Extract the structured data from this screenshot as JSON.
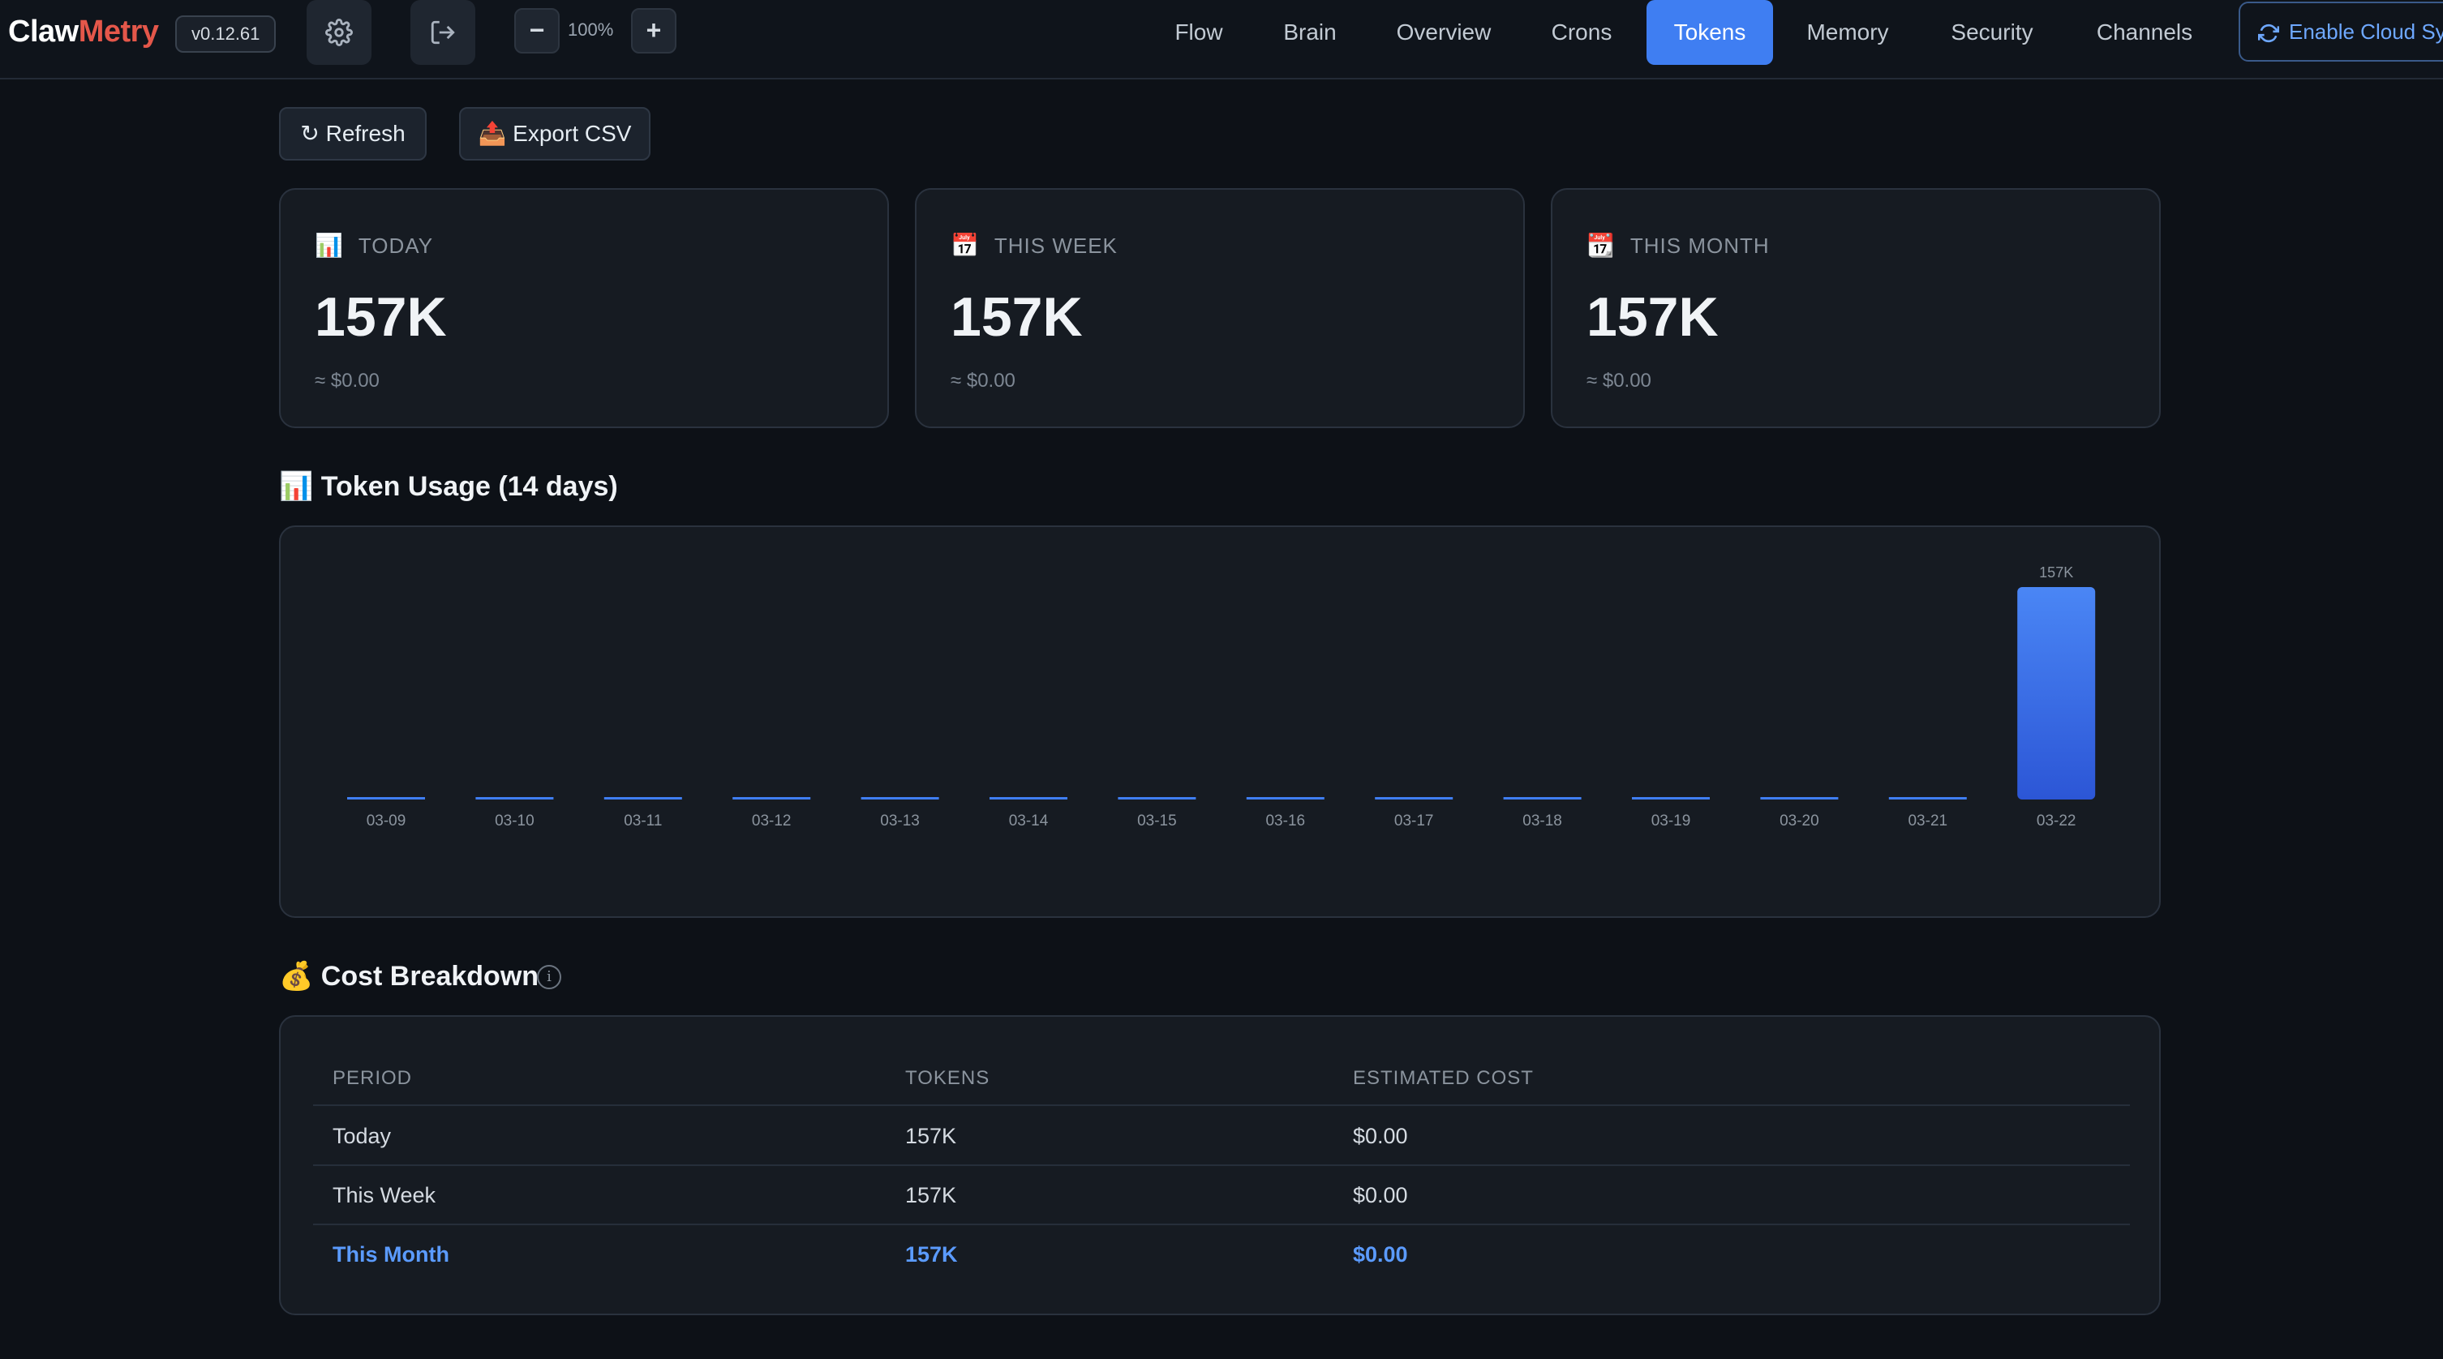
{
  "app": {
    "logo_part1": "Claw",
    "logo_part2": "Metry",
    "version": "v0.12.61",
    "zoom": "100%",
    "zoom_out": "−",
    "zoom_in": "+"
  },
  "nav": [
    {
      "label": "Flow"
    },
    {
      "label": "Brain"
    },
    {
      "label": "Overview"
    },
    {
      "label": "Crons"
    },
    {
      "label": "Tokens",
      "active": true
    },
    {
      "label": "Memory"
    },
    {
      "label": "Security"
    },
    {
      "label": "Channels"
    }
  ],
  "cloud_sync_label": "Enable Cloud Sync",
  "actions": {
    "refresh": "↻ Refresh",
    "export": "📤 Export CSV"
  },
  "cards": [
    {
      "icon": "📊",
      "label": "TODAY",
      "value": "157K",
      "cost": "≈ $0.00"
    },
    {
      "icon": "📅",
      "label": "THIS WEEK",
      "value": "157K",
      "cost": "≈ $0.00"
    },
    {
      "icon": "📆",
      "label": "THIS MONTH",
      "value": "157K",
      "cost": "≈ $0.00"
    }
  ],
  "usage_title": "📊 Token Usage (14 days)",
  "chart_data": {
    "type": "bar",
    "title": "Token Usage (14 days)",
    "categories": [
      "03-09",
      "03-10",
      "03-11",
      "03-12",
      "03-13",
      "03-14",
      "03-15",
      "03-16",
      "03-17",
      "03-18",
      "03-19",
      "03-20",
      "03-21",
      "03-22"
    ],
    "values": [
      0,
      0,
      0,
      0,
      0,
      0,
      0,
      0,
      0,
      0,
      0,
      0,
      0,
      157000
    ],
    "data_labels": [
      "",
      "",
      "",
      "",
      "",
      "",
      "",
      "",
      "",
      "",
      "",
      "",
      "",
      "157K"
    ],
    "bar_color": "#3f7ef2",
    "grid": false
  },
  "cost_title": "💰 Cost Breakdown",
  "info_glyph": "i",
  "table": {
    "headers": [
      "PERIOD",
      "TOKENS",
      "ESTIMATED COST"
    ],
    "rows": [
      {
        "period": "Today",
        "tokens": "157K",
        "cost": "$0.00"
      },
      {
        "period": "This Week",
        "tokens": "157K",
        "cost": "$0.00"
      },
      {
        "period": "This Month",
        "tokens": "157K",
        "cost": "$0.00"
      }
    ]
  },
  "colors": {
    "accent": "#3f7ef2",
    "logo_red": "#e4574a",
    "background": "#0d1117",
    "card": "#161b22"
  }
}
